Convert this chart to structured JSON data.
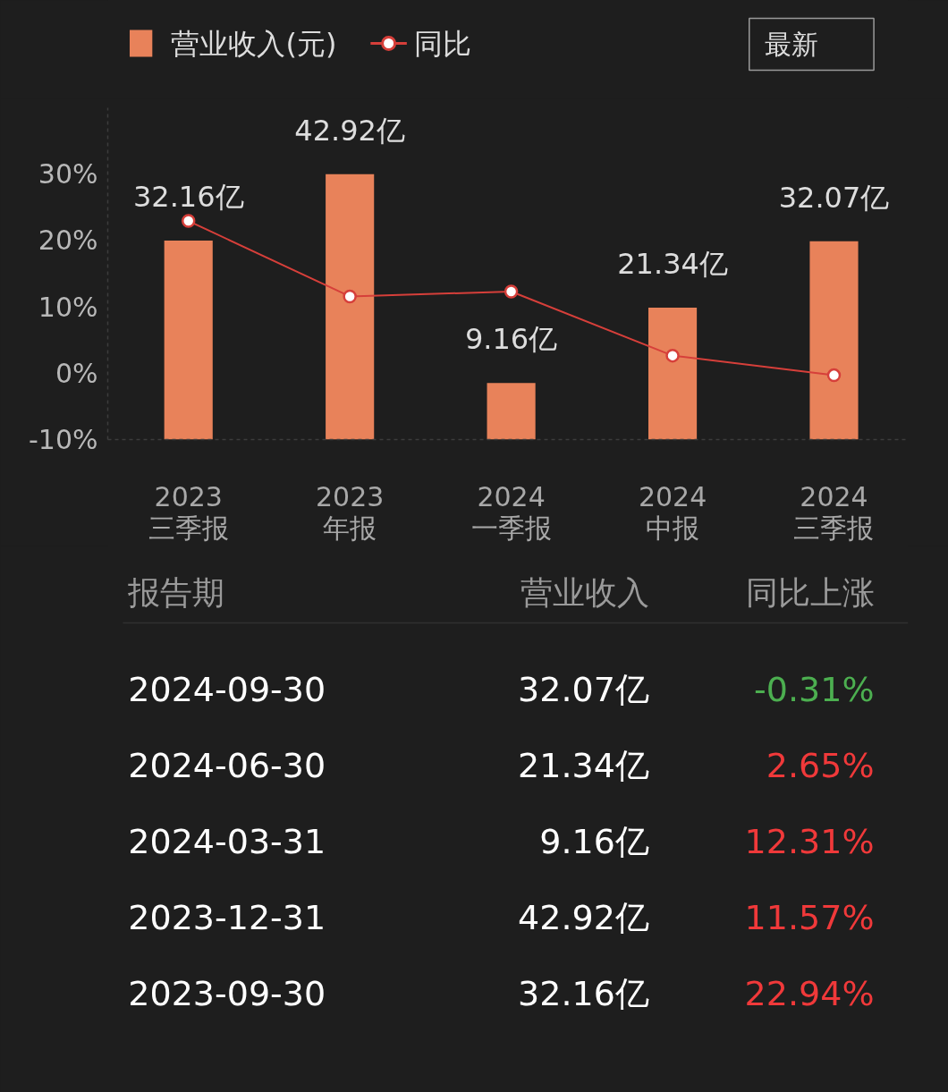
{
  "chart_data": [
    {
      "type": "bar",
      "categories": [
        "2023\n三季报",
        "2023\n年报",
        "2024\n一季报",
        "2024\n中报",
        "2024\n三季报"
      ],
      "series": [
        {
          "name": "营业收入(元)",
          "color": "#e8825a",
          "axis": "y2",
          "values": [
            32.16,
            42.92,
            9.16,
            21.34,
            32.07
          ],
          "value_labels": [
            "32.16亿",
            "42.92亿",
            "9.16亿",
            "21.34亿",
            "32.07亿"
          ]
        },
        {
          "name": "同比",
          "type": "line",
          "color": "#d63f3a",
          "axis": "y",
          "values": [
            22.94,
            11.57,
            12.31,
            2.65,
            -0.31
          ]
        }
      ],
      "ylim": [
        -10,
        40
      ],
      "yticks": [
        {
          "value": -10,
          "label": "-10%"
        },
        {
          "value": 0,
          "label": "0%"
        },
        {
          "value": 10,
          "label": "10%"
        },
        {
          "value": 20,
          "label": "20%"
        },
        {
          "value": 30,
          "label": "30%"
        }
      ],
      "y2lim": [
        0,
        53.65
      ],
      "marker": "circle",
      "line_style": "solid",
      "legend": "top left",
      "annotations": [
        "最新"
      ]
    },
    {
      "type": "other",
      "annotations": [
        "报告期",
        "营业收入",
        "同比上涨",
        "2024-09-30",
        "32.07亿",
        "-0.31%",
        "2024-06-30",
        "21.34亿",
        "2.65%",
        "2024-03-31",
        "9.16亿",
        "12.31%",
        "2023-12-31",
        "42.92亿",
        "11.57%",
        "2023-09-30",
        "32.16亿",
        "22.94%"
      ],
      "colors": [
        "#9a9a9a",
        "#9a9a9a",
        "#9a9a9a",
        "#ffffff",
        "#ffffff",
        "#4caf50",
        "#ffffff",
        "#ffffff",
        "#f0393a",
        "#ffffff",
        "#ffffff",
        "#f0393a",
        "#ffffff",
        "#ffffff",
        "#f0393a",
        "#ffffff",
        "#ffffff",
        "#f0393a"
      ]
    }
  ]
}
